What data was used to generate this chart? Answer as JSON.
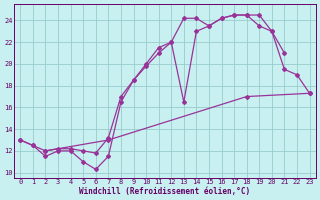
{
  "xlabel": "Windchill (Refroidissement éolien,°C)",
  "background_color": "#c8f0f0",
  "grid_color": "#99cccc",
  "line_color": "#993399",
  "xlim": [
    -0.5,
    23.5
  ],
  "ylim": [
    9.5,
    25.5
  ],
  "xticks": [
    0,
    1,
    2,
    3,
    4,
    5,
    6,
    7,
    8,
    9,
    10,
    11,
    12,
    13,
    14,
    15,
    16,
    17,
    18,
    19,
    20,
    21,
    22,
    23
  ],
  "yticks": [
    10,
    12,
    14,
    16,
    18,
    20,
    22,
    24
  ],
  "s1x": [
    0,
    1,
    2,
    3,
    4,
    5,
    6,
    7,
    8,
    9,
    10,
    11,
    12,
    13,
    14,
    15,
    16,
    17,
    18,
    19,
    20,
    21
  ],
  "s1y": [
    13.0,
    12.5,
    11.5,
    12.0,
    12.0,
    11.0,
    10.3,
    11.5,
    16.5,
    18.5,
    20.0,
    21.5,
    22.0,
    24.2,
    24.2,
    23.5,
    24.2,
    24.5,
    24.5,
    24.5,
    23.0,
    21.0
  ],
  "s2x": [
    0,
    1,
    2,
    3,
    4,
    5,
    6,
    7,
    8,
    9,
    10,
    11,
    12,
    13,
    14,
    15,
    16,
    17,
    18,
    19,
    20,
    21,
    22,
    23
  ],
  "s2y": [
    13.0,
    12.5,
    12.0,
    12.2,
    12.2,
    12.0,
    11.8,
    13.2,
    17.0,
    18.5,
    19.8,
    21.0,
    22.0,
    16.5,
    23.0,
    23.5,
    24.2,
    24.5,
    24.5,
    23.5,
    23.0,
    19.5,
    19.0,
    17.3
  ],
  "s3x": [
    2,
    7,
    18,
    23
  ],
  "s3y": [
    12.0,
    13.0,
    17.0,
    17.3
  ]
}
